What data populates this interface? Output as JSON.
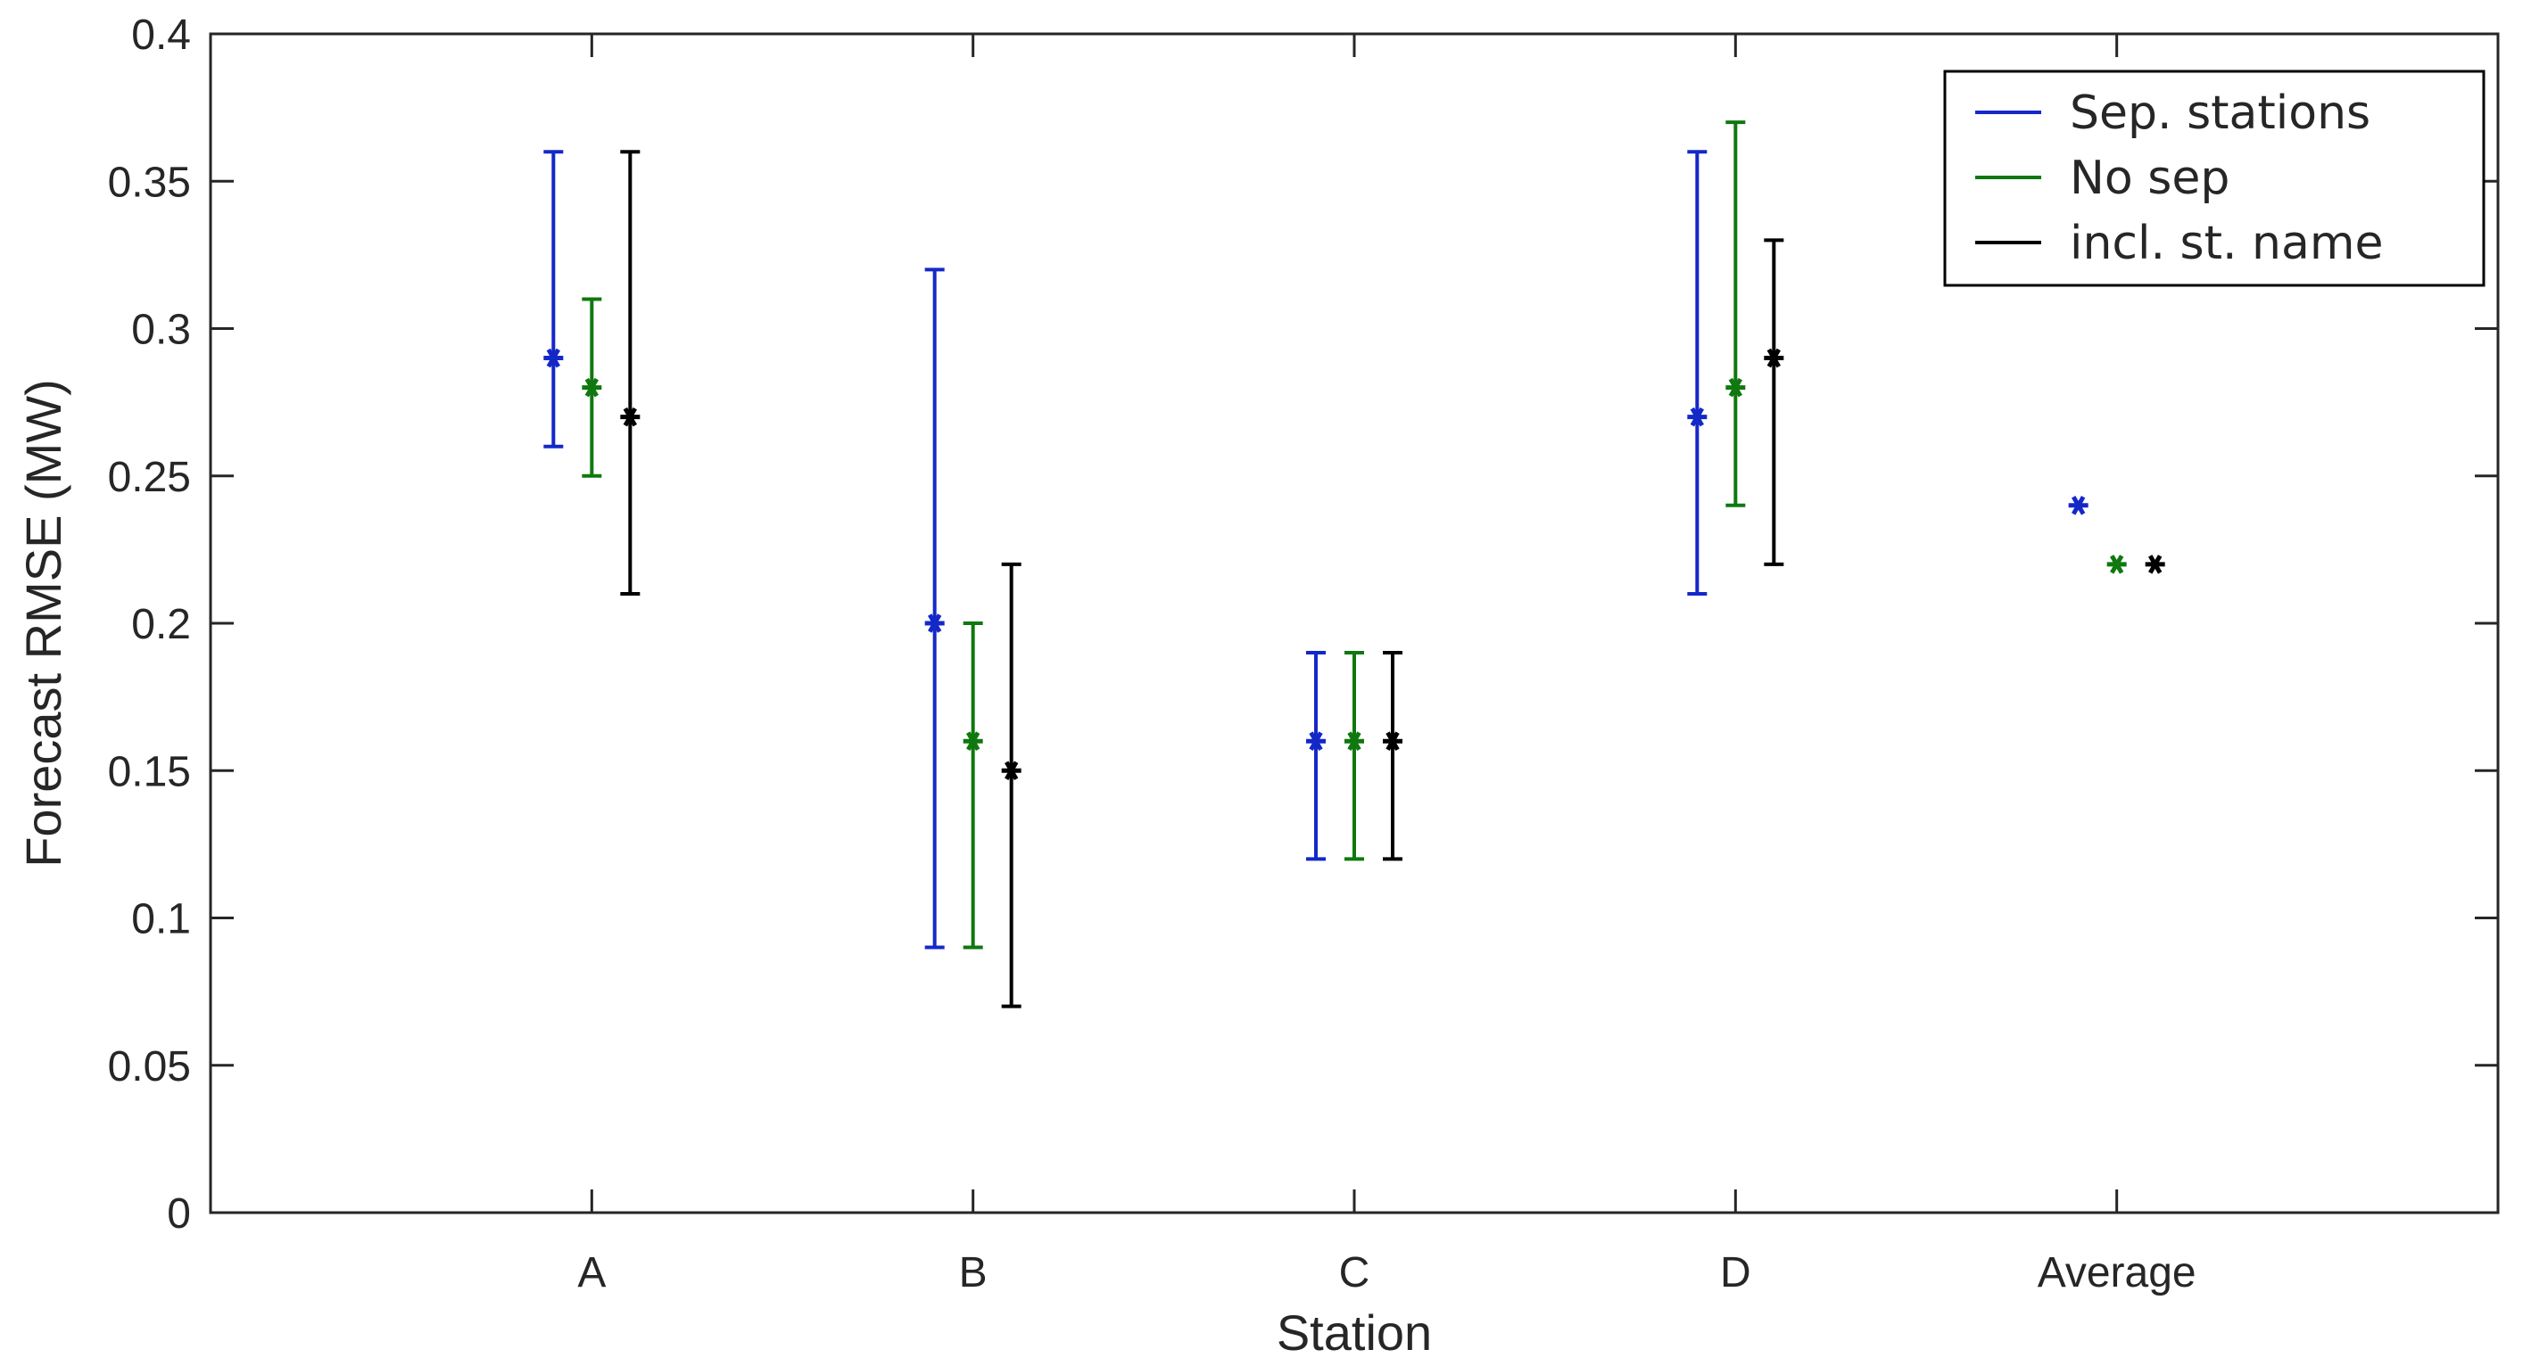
{
  "chart_data": {
    "type": "errorbar",
    "title": "",
    "xlabel": "Station",
    "ylabel": "Forecast RMSE (MW)",
    "categories": [
      "A",
      "B",
      "C",
      "D",
      "Average"
    ],
    "ylim": [
      0,
      0.4
    ],
    "yticks": [
      "0",
      "0.05",
      "0.1",
      "0.15",
      "0.2",
      "0.25",
      "0.3",
      "0.35",
      "0.4"
    ],
    "grid": false,
    "legend_position": "top-right",
    "marker": "*",
    "series": [
      {
        "name": "Sep. stations",
        "color": "#1428c8",
        "values": [
          0.29,
          0.2,
          0.16,
          0.27,
          0.24
        ],
        "lower": [
          0.26,
          0.09,
          0.12,
          0.21,
          null
        ],
        "upper": [
          0.36,
          0.32,
          0.19,
          0.36,
          null
        ]
      },
      {
        "name": "No sep",
        "color": "#0f780f",
        "values": [
          0.28,
          0.16,
          0.16,
          0.28,
          0.22
        ],
        "lower": [
          0.25,
          0.09,
          0.12,
          0.24,
          null
        ],
        "upper": [
          0.31,
          0.2,
          0.19,
          0.37,
          null
        ]
      },
      {
        "name": "incl. st. name",
        "color": "#000000",
        "values": [
          0.27,
          0.15,
          0.16,
          0.29,
          0.22
        ],
        "lower": [
          0.21,
          0.07,
          0.12,
          0.22,
          null
        ],
        "upper": [
          0.36,
          0.22,
          0.19,
          0.33,
          null
        ]
      }
    ]
  }
}
